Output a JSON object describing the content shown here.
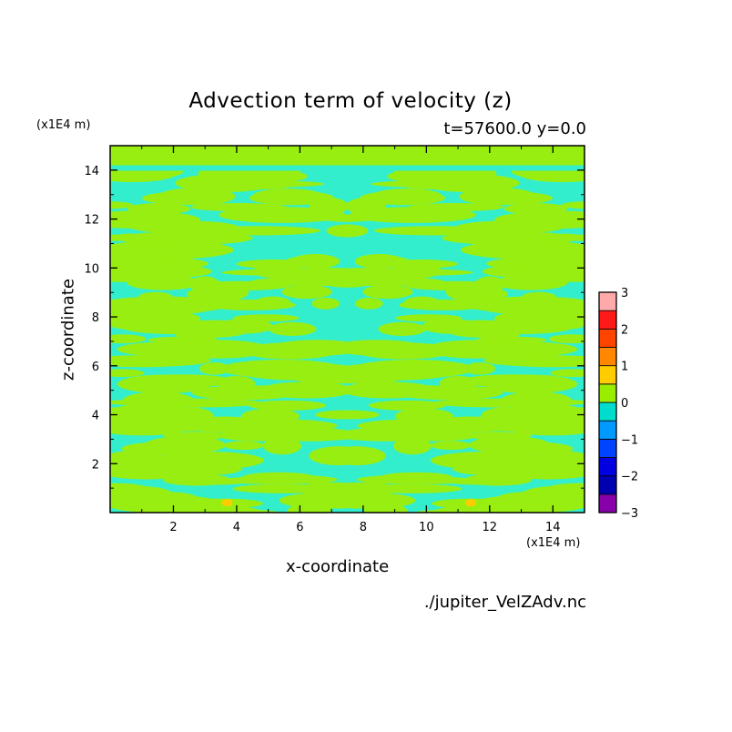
{
  "chart_data": {
    "type": "heatmap",
    "title": "Advection term of velocity (z)",
    "subtitle": "t=57600.0 y=0.0",
    "xlabel": "x-coordinate",
    "ylabel": "z-coordinate",
    "x_unit": "(x1E4 m)",
    "y_unit": "(x1E4 m)",
    "xlim": [
      0,
      15
    ],
    "ylim": [
      0,
      15
    ],
    "x_ticks": [
      "2",
      "4",
      "6",
      "8",
      "10",
      "12",
      "14"
    ],
    "y_ticks": [
      "2",
      "4",
      "6",
      "8",
      "10",
      "12",
      "14"
    ],
    "colorbar": {
      "ticks": [
        "3",
        "2",
        "1",
        "0",
        "−1",
        "−2",
        "−3"
      ],
      "levels": [
        -3,
        -2.5,
        -2,
        -1.5,
        -1,
        -0.5,
        0,
        0.5,
        1,
        1.5,
        2,
        2.5,
        3
      ],
      "colors": [
        "#8800aa",
        "#0000b0",
        "#0000e0",
        "#0044ff",
        "#0099ff",
        "#00ddcc",
        "#99ee00",
        "#ffcc00",
        "#ff8800",
        "#ff4400",
        "#ff1a1a",
        "#ffaaaa"
      ]
    },
    "field_colors": {
      "negative": "#33eecc",
      "positive": "#99ee11",
      "upper_positive": "#ffcc00"
    },
    "source_file": "./jupiter_VelZAdv.nc"
  }
}
